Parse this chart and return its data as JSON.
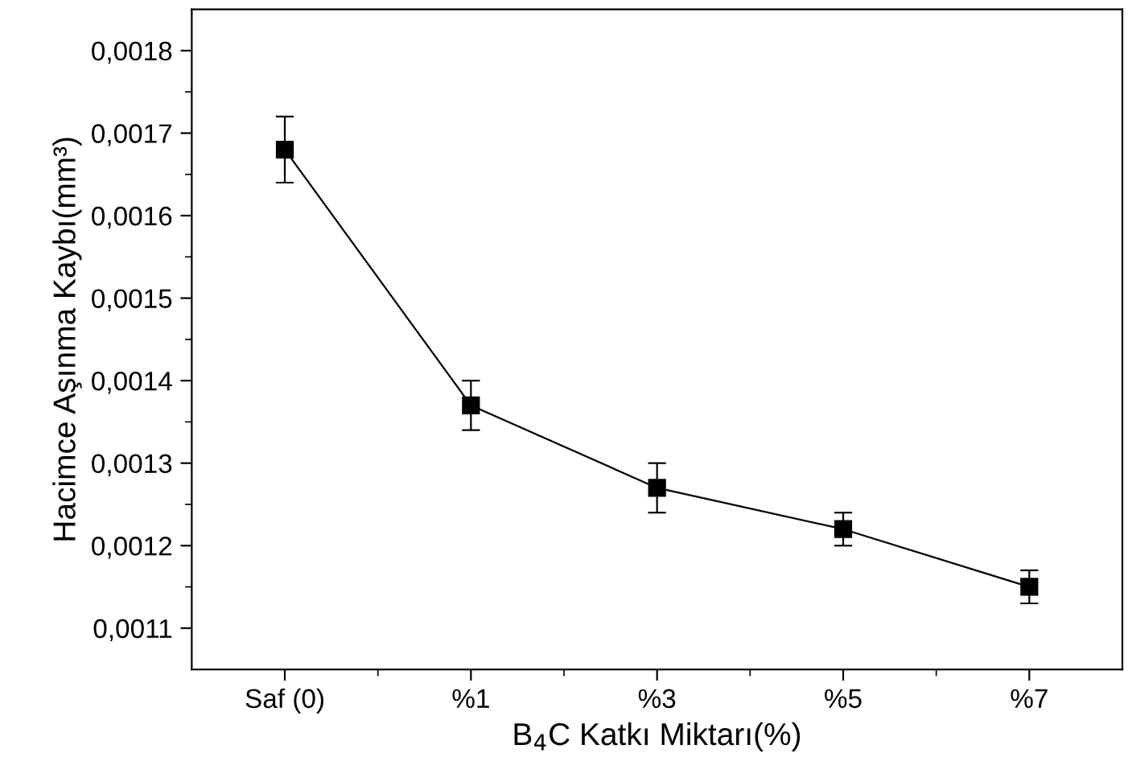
{
  "chart_data": {
    "type": "line",
    "xlabel": "B$_{4}$C Katkı Miktarı(%)",
    "ylabel": "Hacimce Aşınma Kaybı(mm³)",
    "categories": [
      "Saf (0)",
      "%1",
      "%3",
      "%5",
      "%7"
    ],
    "series": [
      {
        "color": "#000000",
        "values": [
          0.00168,
          0.00137,
          0.00127,
          0.00122,
          0.00115
        ],
        "errors": [
          [
            0.00164,
            0.00172
          ],
          [
            0.00134,
            0.0014
          ],
          [
            0.00124,
            0.0013
          ],
          [
            0.0012,
            0.00124
          ],
          [
            0.00113,
            0.00117
          ]
        ]
      }
    ],
    "ylim": [
      0.00105,
      0.00185
    ],
    "yticks": [
      {
        "value": 0.0011,
        "label": "0,0011"
      },
      {
        "value": 0.0012,
        "label": "0,0012"
      },
      {
        "value": 0.0013,
        "label": "0,0013"
      },
      {
        "value": 0.0014,
        "label": "0,0014"
      },
      {
        "value": 0.0015,
        "label": "0,0015"
      },
      {
        "value": 0.0016,
        "label": "0,0016"
      },
      {
        "value": 0.0017,
        "label": "0,0017"
      },
      {
        "value": 0.0018,
        "label": "0,0018"
      }
    ],
    "marker": "square",
    "line_style": "solid",
    "grid": false,
    "legend": false
  }
}
